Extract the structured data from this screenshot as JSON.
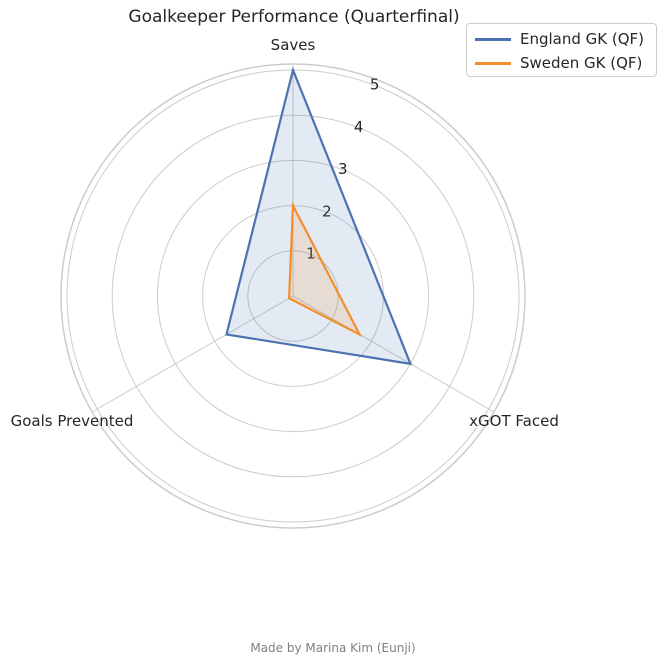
{
  "chart_data": {
    "type": "radar",
    "title": "Goalkeeper Performance (Quarterfinal)",
    "axes": [
      "Saves",
      "xGOT Faced",
      "Goals Prevented"
    ],
    "rlim": [
      0,
      5
    ],
    "rticks": [
      1,
      2,
      3,
      4,
      5
    ],
    "series": [
      {
        "name": "England GK (QF)",
        "color": "#4c72b0",
        "values": [
          5.0,
          3.0,
          1.7
        ]
      },
      {
        "name": "Sweden GK (QF)",
        "color": "#f28e2b",
        "values": [
          2.0,
          1.7,
          0.1
        ]
      }
    ],
    "legend": "top-right",
    "grid": true
  },
  "footer": {
    "credit": "Made by Marina Kim (Eunji)"
  }
}
